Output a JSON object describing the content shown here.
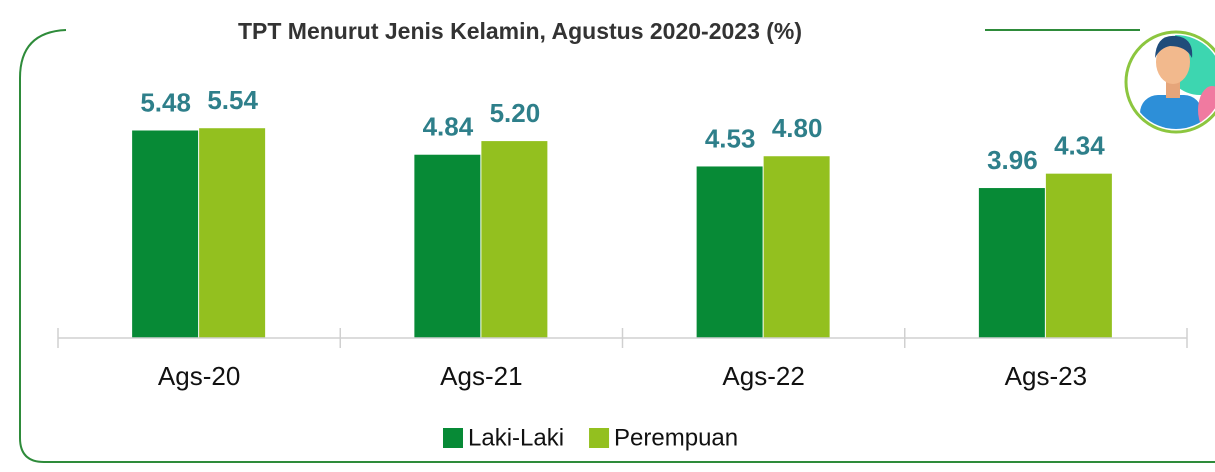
{
  "chart_data": {
    "type": "bar",
    "title": "TPT Menurut Jenis Kelamin, Agustus 2020-2023 (%)",
    "categories": [
      "Ags-20",
      "Ags-21",
      "Ags-22",
      "Ags-23"
    ],
    "series": [
      {
        "name": "Laki-Laki",
        "color": "#078a36",
        "values": [
          5.48,
          4.84,
          4.53,
          3.96
        ],
        "value_labels": [
          "5.48",
          "4.84",
          "4.53",
          "3.96"
        ]
      },
      {
        "name": "Perempuan",
        "color": "#93c01f",
        "values": [
          5.54,
          5.2,
          4.8,
          4.34
        ],
        "value_labels": [
          "5.54",
          "5.20",
          "4.80",
          "4.34"
        ]
      }
    ],
    "ylim": [
      0,
      6
    ],
    "legend": "bottom"
  }
}
